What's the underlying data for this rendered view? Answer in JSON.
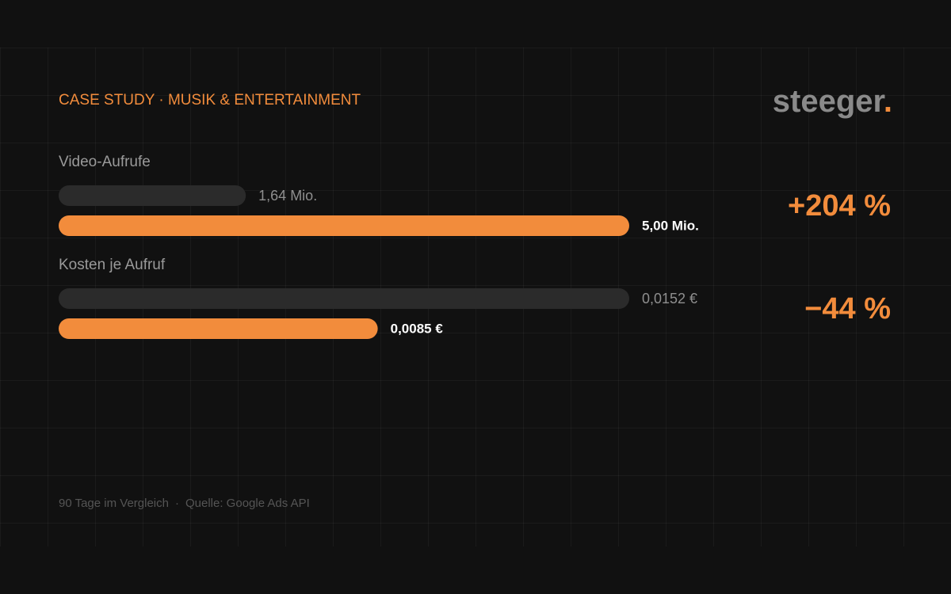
{
  "eyebrow": "CASE STUDY · MUSIK & ENTERTAINMENT",
  "logo": {
    "word": "steeger",
    "dot": "."
  },
  "chart_data": [
    {
      "type": "bar",
      "title": "Video-Aufrufe",
      "values": [
        1640000,
        5000000
      ],
      "value_labels": [
        "1,64 Mio.",
        "5,00 Mio."
      ],
      "colors": [
        "#2b2b2b",
        "#f28c3c"
      ],
      "change": {
        "value": 204,
        "label": "+204 %"
      }
    },
    {
      "type": "bar",
      "title": "Kosten je Aufruf",
      "values": [
        0.0152,
        0.0085
      ],
      "value_labels": [
        "0,0152 €",
        "0,0085 €"
      ],
      "colors": [
        "#2b2b2b",
        "#f28c3c"
      ],
      "change": {
        "value": -44,
        "label": "−44 %"
      }
    }
  ],
  "footer": {
    "left": "90 Tage im Vergleich",
    "separator": "·",
    "right": "Quelle: Google Ads API"
  }
}
